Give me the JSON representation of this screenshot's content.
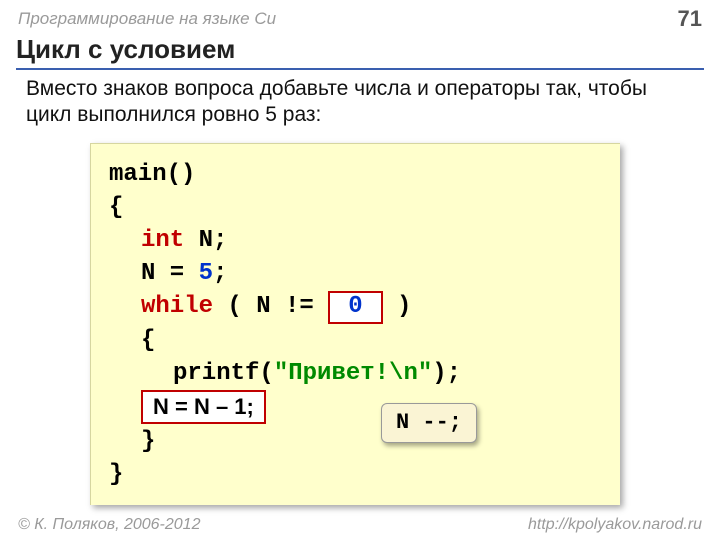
{
  "header": {
    "course": "Программирование на языке Си",
    "page": "71"
  },
  "title": "Цикл с условием",
  "task": "Вместо знаков вопроса добавьте числа и операторы так, чтобы цикл выполнился ровно 5 раз:",
  "code": {
    "l1": "main()",
    "l2": "{",
    "l3_kw": "int",
    "l3_rest": " N;",
    "l4_a": "N = ",
    "l4_num": "5",
    "l4_b": ";",
    "l5_kw": "while",
    "l5_a": " ( N !=",
    "l5_ans": "0",
    "l5_b": " )",
    "l6": "{",
    "l7_a": "printf(",
    "l7_str": "\"Привет!\\n\"",
    "l7_b": ");",
    "l8_ans": "N = N – 1;",
    "l9": "}",
    "l10": "}"
  },
  "callout": "N --;",
  "footer": {
    "copyright": "© К. Поляков, 2006-2012",
    "url": "http://kpolyakov.narod.ru"
  },
  "colors": {
    "bg": "#ffffff",
    "code_bg": "#ffffcc",
    "keyword": "#c00000",
    "number": "#0033cc",
    "string": "#008a00",
    "rule": "#3a5faf",
    "muted": "#9a9a9a",
    "callout_bg": "#faf4d4"
  }
}
